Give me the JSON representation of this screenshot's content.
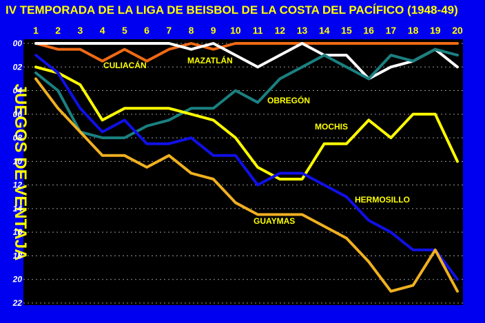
{
  "colors": {
    "background": "#0000f0",
    "plot_area": "#000000",
    "title_text": "#ffff00",
    "tick_text": "#ffffff"
  },
  "chart_data": {
    "type": "line",
    "title": "IV TEMPORADA DE LA LIGA DE BEISBOL DE LA COSTA DEL PACÍFICO (1948-49)",
    "ylabel": "JUEGOS DE VENTAJA",
    "xlabel": "",
    "x": [
      1,
      2,
      3,
      4,
      5,
      6,
      7,
      8,
      9,
      10,
      11,
      12,
      13,
      14,
      15,
      16,
      17,
      18,
      19,
      20
    ],
    "x_tick_labels": [
      "1",
      "2",
      "3",
      "4",
      "5",
      "6",
      "7",
      "8",
      "9",
      "10",
      "11",
      "12",
      "13",
      "14",
      "15",
      "16",
      "17",
      "18",
      "19",
      "20"
    ],
    "y_tick_values": [
      0,
      2,
      4,
      6,
      8,
      10,
      12,
      14,
      16,
      18,
      20,
      22
    ],
    "y_tick_labels": [
      "00",
      "02",
      "04",
      "06",
      "08",
      "10",
      "12",
      "14",
      "16",
      "18",
      "20",
      "22"
    ],
    "ylim": [
      0,
      22
    ],
    "y_inverted": true,
    "grid": true,
    "series": [
      {
        "name": "CULIACÁN",
        "color": "#f06a14",
        "values": [
          0,
          0.5,
          0.5,
          1.5,
          0.5,
          1.5,
          0.5,
          0,
          0.5,
          0,
          0,
          0,
          0,
          0,
          0,
          0,
          0,
          0,
          0,
          0
        ]
      },
      {
        "name": "MAZATLÁN",
        "color": "#ffffff",
        "values": [
          0,
          0,
          0,
          0,
          0,
          0,
          0,
          0.5,
          0,
          1,
          2,
          1,
          0,
          1,
          1,
          3,
          2,
          1.5,
          0.5,
          2
        ]
      },
      {
        "name": "OBREGÓN",
        "color": "#1a8080",
        "values": [
          2.5,
          4,
          7.5,
          8,
          8,
          7,
          6.5,
          5.5,
          5.5,
          4,
          5,
          3,
          2,
          1,
          2,
          3,
          1,
          1.5,
          0.5,
          1
        ]
      },
      {
        "name": "MOCHIS",
        "color": "#ffff00",
        "values": [
          2,
          2.5,
          3.5,
          6.5,
          5.5,
          5.5,
          5.5,
          6,
          6.5,
          8,
          10.5,
          11.5,
          11.5,
          8.5,
          8.5,
          6.5,
          8,
          6,
          6,
          10
        ]
      },
      {
        "name": "HERMOSILLO",
        "color": "#1010e8",
        "values": [
          1,
          2.5,
          5.5,
          7.5,
          6.5,
          8.5,
          8.5,
          8,
          9.5,
          9.5,
          12,
          11,
          11,
          12,
          13,
          15,
          16,
          17.5,
          17.5,
          20
        ]
      },
      {
        "name": "GUAYMAS",
        "color": "#f0b020",
        "values": [
          3,
          5.5,
          7.5,
          9.5,
          9.5,
          10.5,
          9.5,
          11,
          11.5,
          13.5,
          14.5,
          14.5,
          14.5,
          15.5,
          16.5,
          18.5,
          21,
          20.5,
          17.5,
          21
        ]
      }
    ],
    "series_labels": [
      "CULIACÁN",
      "MAZATLÁN",
      "OBREGÓN",
      "MOCHIS",
      "HERMOSILLO",
      "GUAYMAS"
    ]
  }
}
